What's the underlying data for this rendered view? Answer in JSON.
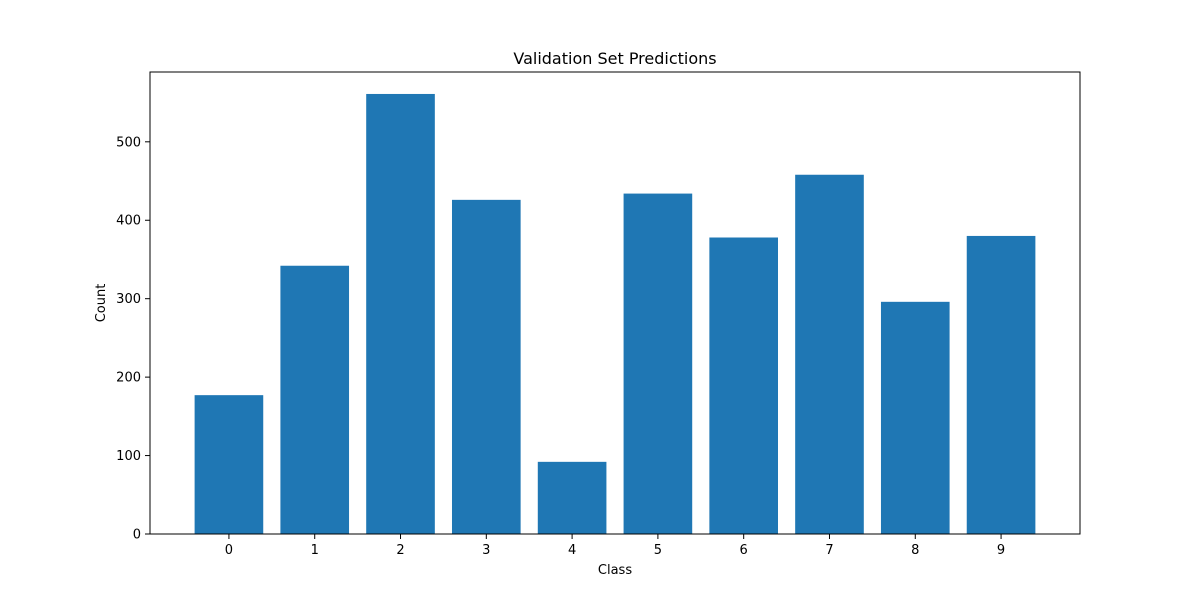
{
  "chart_data": {
    "type": "bar",
    "title": "Validation Set Predictions",
    "xlabel": "Class",
    "ylabel": "Count",
    "categories": [
      "0",
      "1",
      "2",
      "3",
      "4",
      "5",
      "6",
      "7",
      "8",
      "9"
    ],
    "values": [
      177,
      342,
      561,
      426,
      92,
      434,
      378,
      458,
      296,
      380
    ],
    "ylim": [
      0,
      589
    ],
    "yticks": [
      0,
      100,
      200,
      300,
      400,
      500
    ],
    "grid": false,
    "legend": "none",
    "colors": {
      "bar": "#1f77b4"
    }
  }
}
